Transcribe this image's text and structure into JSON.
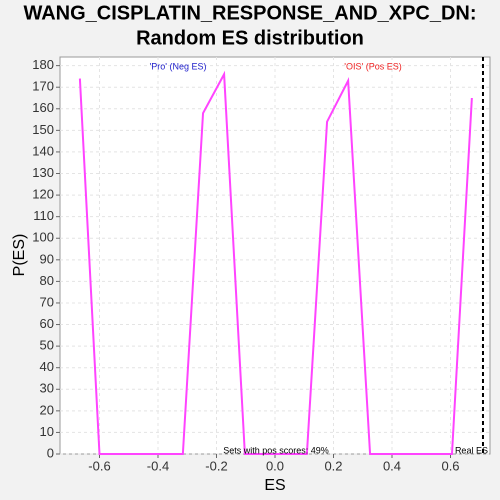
{
  "chart_data": {
    "type": "line",
    "title": [
      "WANG_CISPLATIN_RESPONSE_AND_XPC_DN:",
      "Random ES distribution"
    ],
    "x_label": "ES",
    "y_label": "P(ES)",
    "x": [
      -0.667,
      -0.6,
      -0.315,
      -0.246,
      -0.174,
      -0.103,
      0.109,
      0.178,
      0.25,
      0.325,
      0.605,
      0.673
    ],
    "values": [
      174,
      0,
      0,
      158,
      176,
      0,
      0,
      154,
      173,
      0,
      0,
      165
    ],
    "color": "#ff44ff",
    "xlim": [
      -0.735,
      0.735
    ],
    "ylim": [
      0,
      184
    ],
    "xticks": [
      -0.6,
      -0.4,
      -0.2,
      {
        "value": 0,
        "label": "0.0"
      },
      0.2,
      0.4,
      0.6
    ],
    "yticks": [
      0,
      10,
      20,
      30,
      40,
      50,
      60,
      70,
      80,
      90,
      100,
      110,
      120,
      130,
      140,
      150,
      160,
      170,
      180
    ],
    "grid": true,
    "real_es": {
      "x": 0.711,
      "label": "Real ES"
    },
    "neg_label": {
      "text": "'Pro' (Neg ES)",
      "color": "#2222cc"
    },
    "pos_label": {
      "text": "'OIS' (Pos ES)",
      "color": "#ee2222"
    },
    "annotation": "Sets with pos scores: 49%"
  }
}
